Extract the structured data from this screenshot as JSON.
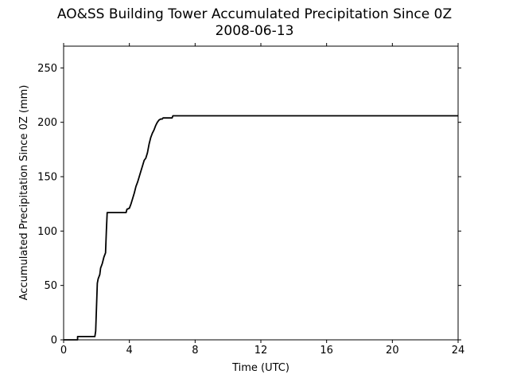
{
  "chart_data": {
    "type": "line",
    "title": "AO&SS Building Tower Accumulated Precipitation Since 0Z",
    "subtitle": "2008-06-13",
    "xlabel": "Time (UTC)",
    "ylabel": "Accumulated Precipitation Since 0Z (mm)",
    "xlim": [
      0,
      24
    ],
    "ylim": [
      0,
      270
    ],
    "xticks": [
      0,
      4,
      8,
      12,
      16,
      20,
      24
    ],
    "yticks": [
      0,
      50,
      100,
      150,
      200,
      250
    ],
    "grid": false,
    "line_color": "#000000",
    "series": [
      {
        "x": [
          0,
          0.85,
          0.85,
          1.9,
          1.95,
          2.0,
          2.05,
          2.1,
          2.2,
          2.25,
          2.35,
          2.45,
          2.55,
          2.6,
          2.65,
          3.8,
          3.85,
          4.0,
          4.1,
          4.2,
          4.3,
          4.4,
          4.5,
          4.6,
          4.7,
          4.8,
          4.9,
          5.0,
          5.1,
          5.2,
          5.3,
          5.4,
          5.5,
          5.6,
          5.7,
          5.8,
          5.9,
          6.0,
          6.05,
          6.6,
          6.65,
          24
        ],
        "y": [
          0,
          0,
          3,
          3,
          8,
          30,
          52,
          56,
          60,
          66,
          70,
          76,
          80,
          100,
          117,
          117,
          120,
          121,
          125,
          130,
          135,
          141,
          145,
          150,
          155,
          160,
          165,
          167,
          172,
          180,
          186,
          190,
          193,
          197,
          200,
          202,
          203,
          203,
          204,
          204,
          206,
          206
        ]
      }
    ]
  }
}
